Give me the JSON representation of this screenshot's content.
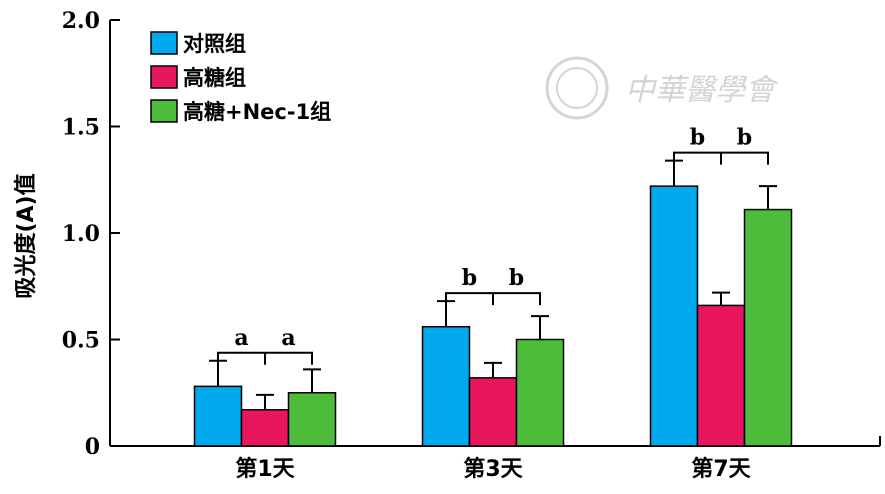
{
  "watermark": {
    "text": "中華醫學會"
  },
  "chart_data": {
    "type": "bar",
    "ylabel": "吸光度(A)值",
    "xlabel": "",
    "ylim": [
      0,
      2.0
    ],
    "yticks": [
      "0",
      "0.5",
      "1.0",
      "1.5",
      "2.0"
    ],
    "categories": [
      "第1天",
      "第3天",
      "第7天"
    ],
    "series": [
      {
        "name": "对照组",
        "color": "#00a8ec",
        "values": [
          0.28,
          0.56,
          1.22
        ],
        "errors": [
          0.12,
          0.12,
          0.12
        ]
      },
      {
        "name": "高糖组",
        "color": "#e8175d",
        "values": [
          0.17,
          0.32,
          0.66
        ],
        "errors": [
          0.07,
          0.07,
          0.06
        ]
      },
      {
        "name": "高糖+Nec-1组",
        "color": "#4cbc3a",
        "values": [
          0.25,
          0.5,
          1.11
        ],
        "errors": [
          0.11,
          0.11,
          0.11
        ]
      }
    ],
    "significance": [
      {
        "category": 0,
        "labels": [
          "a",
          "a"
        ]
      },
      {
        "category": 1,
        "labels": [
          "b",
          "b"
        ]
      },
      {
        "category": 2,
        "labels": [
          "b",
          "b"
        ]
      }
    ],
    "legend_position": "top-left",
    "grid": false
  }
}
